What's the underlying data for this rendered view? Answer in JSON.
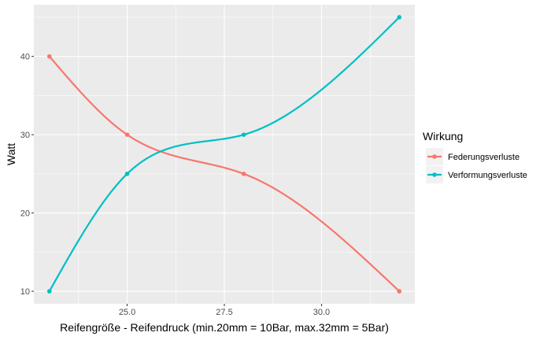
{
  "chart_data": {
    "type": "line",
    "title": "",
    "xlabel": "Reifengröße - Reifendruck (min.20mm = 10Bar, max.32mm = 5Bar)",
    "ylabel": "Watt",
    "x": [
      23,
      25,
      28,
      32
    ],
    "xlim": [
      22.6,
      32.4
    ],
    "ylim": [
      8.4,
      46.6
    ],
    "xticks": [
      25.0,
      27.5,
      30.0
    ],
    "xtick_labels": [
      "25.0",
      "27.5",
      "30.0"
    ],
    "yticks": [
      10,
      20,
      30,
      40
    ],
    "ytick_labels": [
      "10",
      "20",
      "30",
      "40"
    ],
    "grid": true,
    "legend": {
      "title": "Wirkung",
      "position": "right"
    },
    "series": [
      {
        "name": "Federungsverluste",
        "color": "#F8766D",
        "values": [
          40,
          30,
          25,
          10
        ]
      },
      {
        "name": "Verformungsverluste",
        "color": "#00BFC4",
        "values": [
          10,
          25,
          30,
          45
        ]
      }
    ]
  }
}
